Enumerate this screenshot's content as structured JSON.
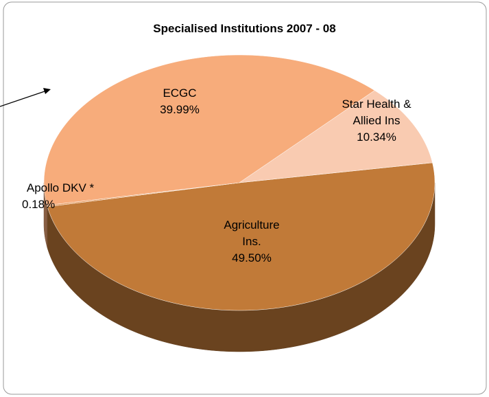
{
  "chart_data": {
    "type": "pie",
    "title": "Specialised Institutions 2007 - 08",
    "categories": [
      "Agriculture Ins.",
      "Apollo DKV *",
      "ECGC",
      "Star Health & Allied Ins"
    ],
    "values": [
      49.5,
      0.18,
      39.99,
      10.34
    ],
    "value_labels": [
      "49.50%",
      "0.18%",
      "39.99%",
      "10.34%"
    ],
    "colors": [
      "#c17a38",
      "#e59a5e",
      "#f7ac7b",
      "#f9cbb1"
    ]
  }
}
